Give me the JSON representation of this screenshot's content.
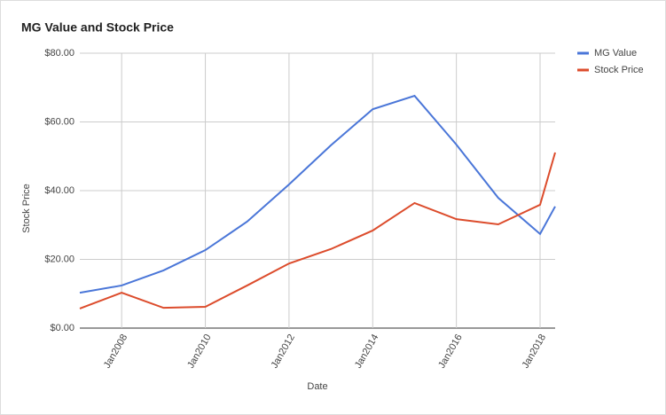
{
  "chart_data": {
    "type": "line",
    "title": "MG Value and Stock Price",
    "x_label": "Date",
    "y_label": "Stock Price",
    "x": [
      2007,
      2008,
      2009,
      2010,
      2011,
      2012,
      2013,
      2014,
      2015,
      2016,
      2017,
      2018,
      2018.36
    ],
    "xlim": [
      2007,
      2018.36
    ],
    "xticks": [
      {
        "value": 2008,
        "label": "Jan2008"
      },
      {
        "value": 2010,
        "label": "Jan2010"
      },
      {
        "value": 2012,
        "label": "Jan2012"
      },
      {
        "value": 2014,
        "label": "Jan2014"
      },
      {
        "value": 2016,
        "label": "Jan2016"
      },
      {
        "value": 2018,
        "label": "Jan2018"
      }
    ],
    "ylim": [
      0,
      80
    ],
    "yticks": [
      {
        "value": 0,
        "label": "$0.00"
      },
      {
        "value": 20,
        "label": "$20.00"
      },
      {
        "value": 40,
        "label": "$40.00"
      },
      {
        "value": 60,
        "label": "$60.00"
      },
      {
        "value": 80,
        "label": "$80.00"
      }
    ],
    "grid": true,
    "legend": "right",
    "series": [
      {
        "name": "MG Value",
        "color": "#4a76d8",
        "values": [
          10.3,
          12.4,
          16.8,
          22.7,
          31,
          41.8,
          53.2,
          63.7,
          67.6,
          53.4,
          37.9,
          27.4,
          35.4
        ]
      },
      {
        "name": "Stock Price",
        "color": "#dc4c2c",
        "values": [
          5.7,
          10.3,
          5.9,
          6.2,
          12.4,
          18.8,
          23,
          28.4,
          36.4,
          31.7,
          30.2,
          35.9,
          51.1
        ]
      }
    ]
  }
}
